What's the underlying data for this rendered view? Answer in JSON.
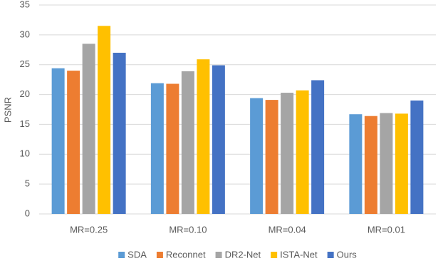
{
  "chart_data": {
    "type": "bar",
    "y_label": "PSNR",
    "categories": [
      "MR=0.25",
      "MR=0.10",
      "MR=0.04",
      "MR=0.01"
    ],
    "series": [
      {
        "name": "SDA",
        "color": "#5b9bd5",
        "values": [
          24.4,
          21.9,
          19.4,
          16.7
        ]
      },
      {
        "name": "Reconnet",
        "color": "#ed7d31",
        "values": [
          24.0,
          21.8,
          19.1,
          16.4
        ]
      },
      {
        "name": "DR2-Net",
        "color": "#a5a5a5",
        "values": [
          28.5,
          23.9,
          20.3,
          16.9
        ]
      },
      {
        "name": "ISTA-Net",
        "color": "#ffc000",
        "values": [
          31.5,
          25.9,
          20.7,
          16.8
        ]
      },
      {
        "name": "Ours",
        "color": "#4472c4",
        "values": [
          27.0,
          24.9,
          22.4,
          19.0
        ]
      }
    ],
    "ylim": [
      0,
      35
    ],
    "yticks": [
      0,
      5,
      10,
      15,
      20,
      25,
      30,
      35
    ],
    "grid": true,
    "legend": "bottom"
  }
}
